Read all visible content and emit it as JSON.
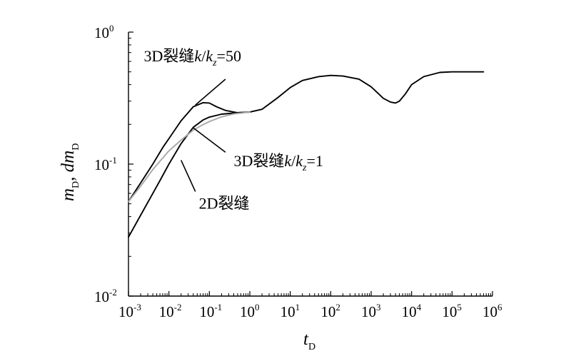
{
  "chart_data": {
    "type": "line",
    "title": "",
    "x_scale": "log",
    "y_scale": "log",
    "xlim": [
      0.001,
      1000000
    ],
    "ylim": [
      0.01,
      1
    ],
    "grid": false,
    "xlabel": {
      "base": "t",
      "sub": "D"
    },
    "ylabel": {
      "m": "m",
      "m_sub": "D",
      "sep": ", ",
      "dm": "dm",
      "dm_sub": "D"
    },
    "x_ticks": [
      {
        "value": 0.001,
        "base": "10",
        "exp": "-3"
      },
      {
        "value": 0.01,
        "base": "10",
        "exp": "-2"
      },
      {
        "value": 0.1,
        "base": "10",
        "exp": "-1"
      },
      {
        "value": 1,
        "base": "10",
        "exp": "0"
      },
      {
        "value": 10,
        "base": "10",
        "exp": "1"
      },
      {
        "value": 100,
        "base": "10",
        "exp": "2"
      },
      {
        "value": 1000,
        "base": "10",
        "exp": "3"
      },
      {
        "value": 10000,
        "base": "10",
        "exp": "4"
      },
      {
        "value": 100000,
        "base": "10",
        "exp": "5"
      },
      {
        "value": 1000000,
        "base": "10",
        "exp": "6"
      }
    ],
    "y_ticks": [
      {
        "value": 0.01,
        "base": "10",
        "exp": "-2"
      },
      {
        "value": 0.1,
        "base": "10",
        "exp": "-1"
      },
      {
        "value": 1,
        "base": "10",
        "exp": "0"
      }
    ],
    "series": [
      {
        "key": "2d",
        "color": "#000000",
        "points": [
          [
            0.001,
            0.028
          ],
          [
            0.002,
            0.041
          ],
          [
            0.004,
            0.06
          ],
          [
            0.006,
            0.075
          ],
          [
            0.01,
            0.1
          ],
          [
            0.02,
            0.143
          ],
          [
            0.04,
            0.19
          ],
          [
            0.07,
            0.216
          ],
          [
            0.1,
            0.227
          ],
          [
            0.2,
            0.239
          ],
          [
            0.5,
            0.245
          ],
          [
            1,
            0.248
          ],
          [
            2,
            0.26
          ],
          [
            5,
            0.32
          ],
          [
            10,
            0.38
          ],
          [
            20,
            0.43
          ],
          [
            50,
            0.46
          ],
          [
            100,
            0.47
          ],
          [
            200,
            0.465
          ],
          [
            500,
            0.44
          ],
          [
            1000,
            0.385
          ],
          [
            2000,
            0.315
          ],
          [
            3000,
            0.295
          ],
          [
            4000,
            0.29
          ],
          [
            5000,
            0.3
          ],
          [
            7000,
            0.34
          ],
          [
            10000,
            0.4
          ],
          [
            20000,
            0.46
          ],
          [
            50000,
            0.495
          ],
          [
            100000,
            0.5
          ],
          [
            600000,
            0.5
          ]
        ]
      },
      {
        "key": "3d_kz50",
        "color": "#000000",
        "points": [
          [
            0.001,
            0.052
          ],
          [
            0.002,
            0.072
          ],
          [
            0.004,
            0.1
          ],
          [
            0.007,
            0.133
          ],
          [
            0.01,
            0.156
          ],
          [
            0.02,
            0.213
          ],
          [
            0.04,
            0.272
          ],
          [
            0.07,
            0.292
          ],
          [
            0.1,
            0.29
          ],
          [
            0.15,
            0.272
          ],
          [
            0.25,
            0.255
          ],
          [
            0.5,
            0.245
          ],
          [
            1,
            0.248
          ]
        ]
      },
      {
        "key": "3d_kz1",
        "color": "#a8a8a8",
        "points": [
          [
            0.001,
            0.052
          ],
          [
            0.002,
            0.068
          ],
          [
            0.004,
            0.091
          ],
          [
            0.01,
            0.126
          ],
          [
            0.02,
            0.152
          ],
          [
            0.04,
            0.181
          ],
          [
            0.07,
            0.199
          ],
          [
            0.1,
            0.21
          ],
          [
            0.2,
            0.228
          ],
          [
            0.4,
            0.24
          ],
          [
            1,
            0.248
          ]
        ]
      }
    ],
    "annotations": [
      {
        "id": "kz50",
        "prefix": "3D裂缝",
        "k": "k",
        "slash": "/",
        "k2": "k",
        "sub": "z",
        "eq": "=50",
        "text_at": [
          0.0024,
          0.6
        ],
        "leader_from": [
          0.25,
          0.44
        ],
        "leader_to": [
          0.045,
          0.28
        ]
      },
      {
        "id": "kz1",
        "prefix": "3D裂缝",
        "k": "k",
        "slash": "/",
        "k2": "k",
        "sub": "z",
        "eq": "=1",
        "text_at": [
          0.4,
          0.0965
        ],
        "leader_from": [
          0.25,
          0.123
        ],
        "leader_to": [
          0.04,
          0.188
        ]
      },
      {
        "id": "2d",
        "prefix": "2D裂缝",
        "text_at": [
          0.055,
          0.0458
        ],
        "leader_from": [
          0.045,
          0.062
        ],
        "leader_to": [
          0.02,
          0.107
        ]
      }
    ]
  }
}
